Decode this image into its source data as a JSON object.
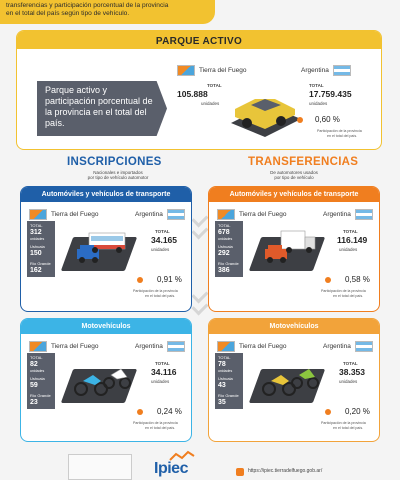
{
  "banner": {
    "line1": "transferencias y participación porcentual de la provincia",
    "line2": "en el total del país según tipo de vehículo."
  },
  "parque_activo": {
    "title": "PARQUE ACTIVO",
    "description": "Parque activo y participación porcentual de la provincia en el total del país.",
    "tdf_label": "Tierra del Fuego",
    "arg_label": "Argentina",
    "total_label": "TOTAL",
    "tdf_total": "105.888",
    "arg_total": "17.759.435",
    "unidades": "unidades",
    "pct": "0,60 %",
    "pct_note_1": "Participación de la provincia",
    "pct_note_2": "en el total del país."
  },
  "inscripciones": {
    "title": "INSCRIPCIONES",
    "subtitle_1": "Nacionales e importados",
    "subtitle_2": "por tipo de vehículo automotor",
    "autos": {
      "header": "Automóviles y vehículos de transporte",
      "tdf_label": "Tierra del Fuego",
      "arg_label": "Argentina",
      "total_label": "TOTAL",
      "tdf_total": "312",
      "unidades": "unidades",
      "ushuaia_label": "Ushuaia",
      "ushuaia": "150",
      "rio_grande_label": "Río Grande",
      "rio_grande": "162",
      "arg_total": "34.165",
      "pct": "0,91 %",
      "pct_note_1": "Participación de la provincia",
      "pct_note_2": "en el total del país."
    },
    "motos": {
      "header": "Motovehículos",
      "tdf_label": "Tierra del Fuego",
      "arg_label": "Argentina",
      "total_label": "TOTAL",
      "tdf_total": "82",
      "unidades": "unidades",
      "ushuaia_label": "Ushuaia",
      "ushuaia": "59",
      "rio_grande_label": "Río Grande",
      "rio_grande": "23",
      "arg_total": "34.116",
      "pct": "0,24 %",
      "pct_note_1": "Participación de la provincia",
      "pct_note_2": "en el total del país."
    }
  },
  "transferencias": {
    "title": "TRANSFERENCIAS",
    "subtitle_1": "De automotores usados",
    "subtitle_2": "por tipo de vehículo",
    "autos": {
      "header": "Automóviles y vehículos de transporte",
      "tdf_label": "Tierra del Fuego",
      "arg_label": "Argentina",
      "total_label": "TOTAL",
      "tdf_total": "678",
      "unidades": "unidades",
      "ushuaia_label": "Ushuaia",
      "ushuaia": "292",
      "rio_grande_label": "Río Grande",
      "rio_grande": "386",
      "arg_total": "116.149",
      "pct": "0,58 %",
      "pct_note_1": "Participación de la provincia",
      "pct_note_2": "en el total del país."
    },
    "motos": {
      "header": "Motovehículos",
      "tdf_label": "Tierra del Fuego",
      "arg_label": "Argentina",
      "total_label": "TOTAL",
      "tdf_total": "78",
      "unidades": "unidades",
      "ushuaia_label": "Ushuaia",
      "ushuaia": "43",
      "rio_grande_label": "Río Grande",
      "rio_grande": "35",
      "arg_total": "38.353",
      "pct": "0,20 %",
      "pct_note_1": "Participación de la provincia",
      "pct_note_2": "en el total del país."
    }
  },
  "footer": {
    "logo_text": "Ipiec",
    "url": "https://ipiec.tierradelfuego.gob.ar/"
  },
  "colors": {
    "yellow": "#f2c230",
    "blue": "#1f5fa8",
    "orange": "#f07e1f",
    "cyan": "#3cb4e6",
    "dark_panel": "#5a5f6b"
  }
}
